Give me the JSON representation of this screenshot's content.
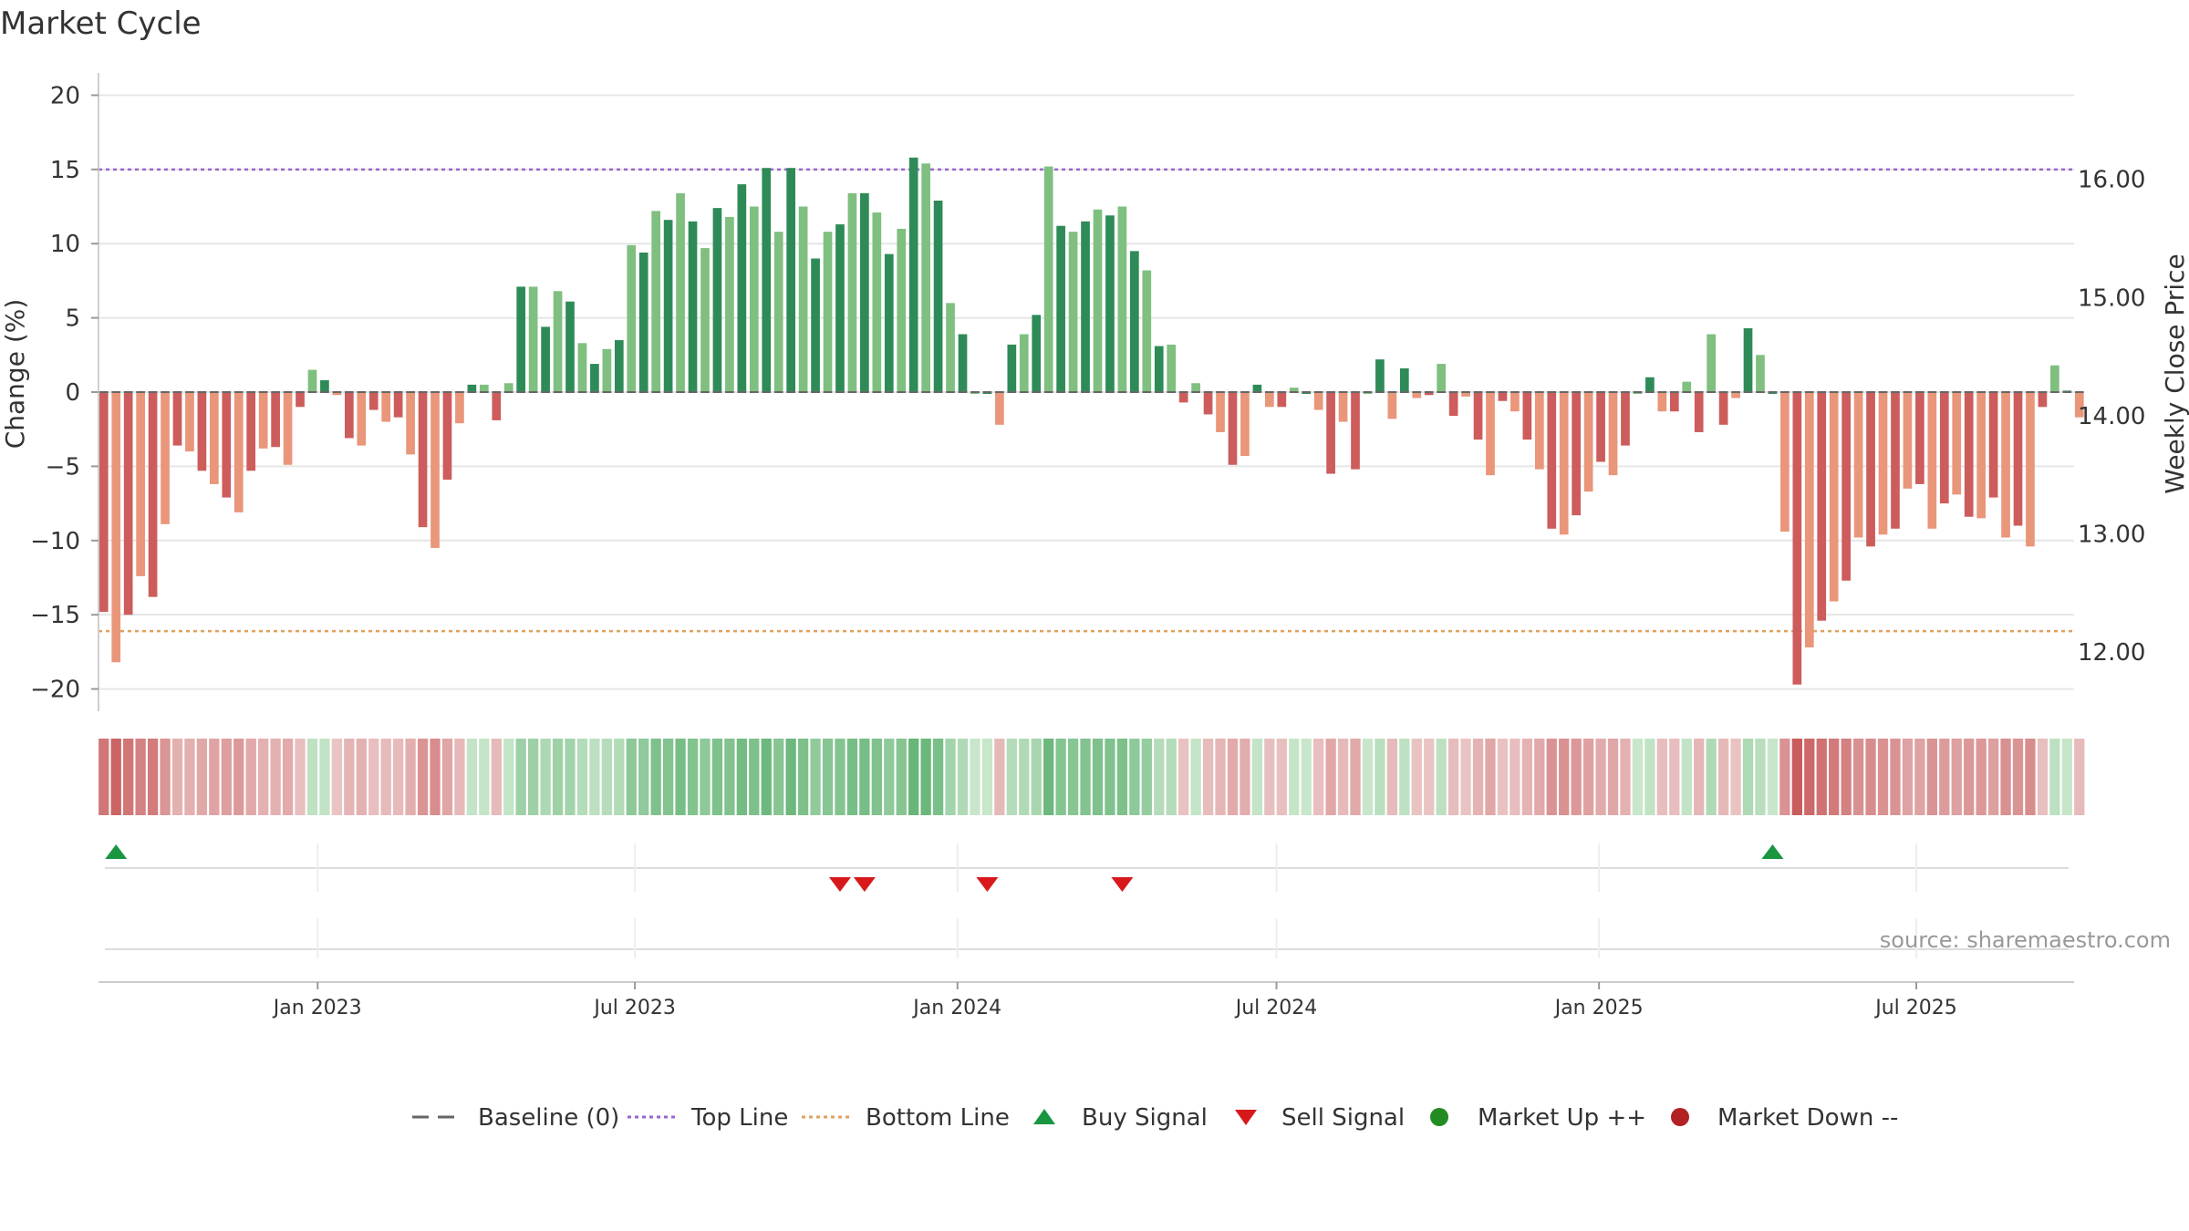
{
  "chart_data": {
    "type": "bar",
    "title": "Market Cycle",
    "ylabel": "Change (%)",
    "y2label": "Weekly Close Price",
    "ylim": [
      -21.5,
      21.5
    ],
    "y_ticks": [
      20,
      15,
      10,
      5,
      0,
      -5,
      -10,
      -15,
      -20
    ],
    "y_tick_labels": [
      "20",
      "15",
      "10",
      "5",
      "0",
      "−5",
      "−10",
      "−15",
      "−20"
    ],
    "y2lim": [
      11.5,
      16.9
    ],
    "y2_ticks": [
      16,
      15,
      14,
      13,
      12
    ],
    "y2_tick_labels": [
      "16.00",
      "15.00",
      "14.00",
      "13.00",
      "12.00"
    ],
    "top_line": 15,
    "bottom_line": -16.1,
    "x_start": "2022-08-29",
    "x_end": "2025-09-29",
    "x_ticks": [
      {
        "date": "2023-01-01",
        "label": "Jan 2023"
      },
      {
        "date": "2023-07-01",
        "label": "Jul 2023"
      },
      {
        "date": "2024-01-01",
        "label": "Jan 2024"
      },
      {
        "date": "2024-07-01",
        "label": "Jul 2024"
      },
      {
        "date": "2025-01-01",
        "label": "Jan 2025"
      },
      {
        "date": "2025-07-01",
        "label": "Jul 2025"
      }
    ],
    "first_week": "2022-09-01",
    "week_interval_days": 7,
    "values": [
      -14.8,
      -18.2,
      -15.0,
      -12.4,
      -13.8,
      -8.9,
      -3.6,
      -4.0,
      -5.3,
      -6.2,
      -7.1,
      -8.1,
      -5.3,
      -3.8,
      -3.7,
      -4.9,
      -1.0,
      1.5,
      0.8,
      -0.2,
      -3.1,
      -3.6,
      -1.2,
      -2.0,
      -1.7,
      -4.2,
      -9.1,
      -10.5,
      -5.9,
      -2.1,
      0.5,
      0.5,
      -1.9,
      0.6,
      7.1,
      7.1,
      4.4,
      6.8,
      6.1,
      3.3,
      1.9,
      2.9,
      3.5,
      9.9,
      9.4,
      12.2,
      11.6,
      13.4,
      11.5,
      9.7,
      12.4,
      11.8,
      14.0,
      12.5,
      15.1,
      10.8,
      15.1,
      12.5,
      9.0,
      10.8,
      11.3,
      13.4,
      13.4,
      12.1,
      9.3,
      11.0,
      15.8,
      15.4,
      12.9,
      6.0,
      3.9,
      0.0,
      0.0,
      -2.2,
      3.2,
      3.9,
      5.2,
      15.2,
      11.2,
      10.8,
      11.5,
      12.3,
      11.9,
      12.5,
      9.5,
      8.2,
      3.1,
      3.2,
      -0.7,
      0.6,
      -1.5,
      -2.7,
      -4.9,
      -4.3,
      0.5,
      -1.0,
      -1.0,
      0.3,
      0.0,
      -1.2,
      -5.5,
      -2.0,
      -5.2,
      0.0,
      2.2,
      -1.8,
      1.6,
      -0.4,
      -0.2,
      1.9,
      -1.6,
      -0.3,
      -3.2,
      -5.6,
      -0.6,
      -1.3,
      -3.2,
      -5.2,
      -9.2,
      -9.6,
      -8.3,
      -6.7,
      -4.7,
      -5.6,
      -3.6,
      0.0,
      1.0,
      -1.3,
      -1.3,
      0.7,
      -2.7,
      3.9,
      -2.2,
      -0.4,
      4.3,
      2.5,
      0.0,
      -9.4,
      -19.7,
      -17.2,
      -15.4,
      -14.1,
      -12.7,
      -9.8,
      -10.4,
      -9.6,
      -9.2,
      -6.5,
      -6.2,
      -9.2,
      -7.5,
      -6.9,
      -8.4,
      -8.5,
      -7.1,
      -9.8,
      -9.0,
      -10.4,
      -1.0,
      1.8,
      0.1,
      -1.7
    ],
    "buy_signals": [
      "2022-09-08",
      "2025-04-10"
    ],
    "sell_signals": [
      "2023-10-26",
      "2023-11-09",
      "2024-01-18",
      "2024-04-04"
    ],
    "colors": {
      "up_dark": "#2e8b57",
      "up_light": "#7fbf7f",
      "down_dark": "#cd5c5c",
      "down_light": "#e9967a",
      "top_line": "#9966cc",
      "bottom_line": "#e0a060",
      "buy": "#1a9641",
      "sell": "#d7191c",
      "market_up": "#228b22",
      "market_down": "#b22222"
    },
    "legend": [
      {
        "key": "baseline",
        "label": "Baseline (0)"
      },
      {
        "key": "top",
        "label": "Top Line"
      },
      {
        "key": "bottom",
        "label": "Bottom Line"
      },
      {
        "key": "buy",
        "label": "Buy Signal"
      },
      {
        "key": "sell",
        "label": "Sell Signal"
      },
      {
        "key": "mup",
        "label": "Market Up ++"
      },
      {
        "key": "mdown",
        "label": "Market Down --"
      }
    ],
    "source": "source: sharemaestro.com"
  }
}
